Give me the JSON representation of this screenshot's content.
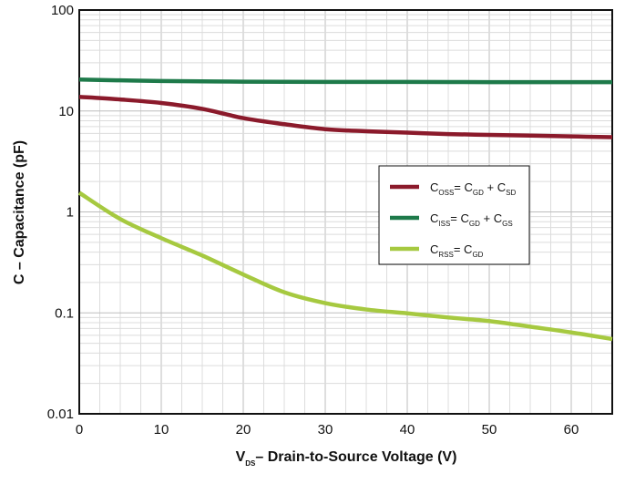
{
  "chart_data": {
    "type": "line",
    "xlabel_main": "V",
    "xlabel_sub": "DS",
    "xlabel_rest": "– Drain-to-Source Voltage (V)",
    "ylabel": "C – Capacitance (pF)",
    "xlim": [
      0,
      65
    ],
    "ylim": [
      0.01,
      100
    ],
    "yscale": "log",
    "grid": true,
    "legend_position": "center-right",
    "x_ticks": [
      "0",
      "10",
      "20",
      "30",
      "40",
      "50",
      "60"
    ],
    "y_ticks": [
      "0.01",
      "0.1",
      "1",
      "10",
      "100"
    ],
    "series": [
      {
        "name": "COSS = CGD + CSD",
        "color": "#8b1a2b",
        "x": [
          0,
          5,
          10,
          15,
          20,
          25,
          30,
          35,
          40,
          45,
          50,
          55,
          60,
          65
        ],
        "y": [
          13.8,
          13.0,
          12.0,
          10.5,
          8.5,
          7.4,
          6.6,
          6.3,
          6.1,
          5.9,
          5.8,
          5.7,
          5.6,
          5.5
        ]
      },
      {
        "name": "CISS = CGD + CGS",
        "color": "#1e7a4a",
        "x": [
          0,
          5,
          10,
          20,
          30,
          40,
          50,
          60,
          65
        ],
        "y": [
          20.5,
          20.1,
          19.8,
          19.5,
          19.4,
          19.4,
          19.3,
          19.3,
          19.3
        ]
      },
      {
        "name": "CRSS = CGD",
        "color": "#a6c940",
        "x": [
          0,
          5,
          10,
          15,
          20,
          25,
          30,
          35,
          40,
          45,
          50,
          55,
          60,
          65
        ],
        "y": [
          1.55,
          0.85,
          0.55,
          0.37,
          0.24,
          0.16,
          0.125,
          0.108,
          0.099,
          0.09,
          0.083,
          0.073,
          0.064,
          0.055
        ]
      }
    ],
    "legend": [
      {
        "c": "C",
        "sub1": "OSS",
        "eq": "= C",
        "sub2": "GD",
        "plus": " + C",
        "sub3": "SD",
        "color": "#8b1a2b"
      },
      {
        "c": "C",
        "sub1": "ISS",
        "eq": "= C",
        "sub2": "GD",
        "plus": " + C",
        "sub3": "GS",
        "color": "#1e7a4a"
      },
      {
        "c": "C",
        "sub1": "RSS",
        "eq": "= C",
        "sub2": "GD",
        "plus": "",
        "sub3": "",
        "color": "#a6c940"
      }
    ]
  }
}
